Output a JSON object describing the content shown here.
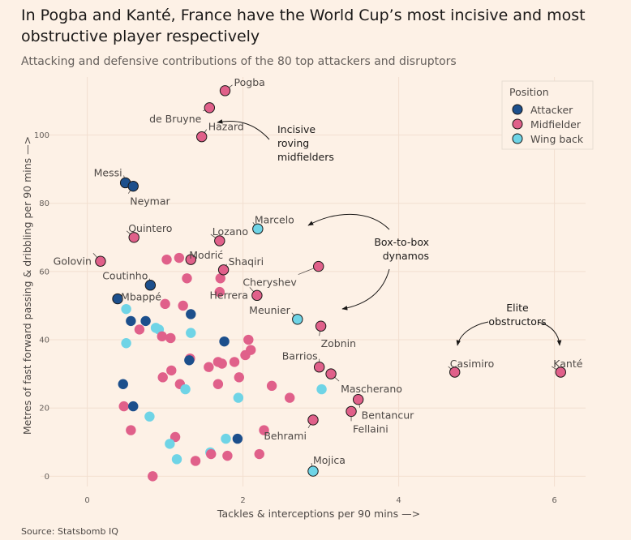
{
  "title": "In Pogba and Kanté, France have the World Cup’s most incisive and most obstructive player respectively",
  "subtitle": "Attacking and defensive contributions of the 80 top attackers and disruptors",
  "source": "Source: Statsbomb IQ",
  "colors": {
    "Attacker": "#1c4f8c",
    "Midfielder": "#e0608a",
    "Wing back": "#6fd4e6",
    "background": "#fdf1e6"
  },
  "chart_data": {
    "type": "scatter",
    "xlabel": "Tackles & interceptions per 90 mins —>",
    "ylabel": "Metres of fast forward passing & dribbling per 90 mins —>",
    "xlim": [
      -0.6,
      6.4
    ],
    "ylim": [
      -3,
      117
    ],
    "xticks": [
      0,
      2,
      4,
      6
    ],
    "yticks": [
      0,
      20,
      40,
      60,
      80,
      100
    ],
    "legend": {
      "title": "Position",
      "placement": "top-right",
      "entries": [
        "Attacker",
        "Midfielder",
        "Wing back"
      ]
    },
    "annotations": [
      {
        "id": "incisive",
        "lines": [
          "Incisive",
          "roving",
          "midfielders"
        ]
      },
      {
        "id": "box",
        "lines": [
          "Box-to-box",
          "dynamos"
        ]
      },
      {
        "id": "elite",
        "lines": [
          "Elite",
          "obstructors"
        ]
      }
    ],
    "points": [
      {
        "x": 1.77,
        "y": 113,
        "pos": "Midfielder",
        "label": "Pogba"
      },
      {
        "x": 1.57,
        "y": 108,
        "pos": "Midfielder",
        "label": "de Bruyne"
      },
      {
        "x": 1.47,
        "y": 99.5,
        "pos": "Midfielder",
        "label": "Hazard"
      },
      {
        "x": 0.49,
        "y": 86,
        "pos": "Attacker",
        "label": "Messi"
      },
      {
        "x": 0.59,
        "y": 85,
        "pos": "Attacker",
        "label": "Neymar"
      },
      {
        "x": 2.19,
        "y": 72.5,
        "pos": "Wing back",
        "label": "Marcelo"
      },
      {
        "x": 0.6,
        "y": 70,
        "pos": "Midfielder",
        "label": "Quintero"
      },
      {
        "x": 1.7,
        "y": 69,
        "pos": "Midfielder",
        "label": "Lozano"
      },
      {
        "x": 0.17,
        "y": 63,
        "pos": "Midfielder",
        "label": "Golovin"
      },
      {
        "x": 1.02,
        "y": 63.5,
        "pos": "Midfielder",
        "label": ""
      },
      {
        "x": 1.18,
        "y": 64,
        "pos": "Midfielder",
        "label": ""
      },
      {
        "x": 1.33,
        "y": 63.5,
        "pos": "Midfielder",
        "label": "Modrić"
      },
      {
        "x": 1.75,
        "y": 60.5,
        "pos": "Midfielder",
        "label": "Shaqiri"
      },
      {
        "x": 0.81,
        "y": 56,
        "pos": "Attacker",
        "label": "Coutinho"
      },
      {
        "x": 2.97,
        "y": 61.5,
        "pos": "Midfielder",
        "label": "Cheryshev"
      },
      {
        "x": 2.18,
        "y": 53,
        "pos": "Midfielder",
        "label": "Herrera"
      },
      {
        "x": 0.39,
        "y": 52,
        "pos": "Attacker",
        "label": "Mbappé"
      },
      {
        "x": 2.7,
        "y": 46,
        "pos": "Wing back",
        "label": "Meunier"
      },
      {
        "x": 3.0,
        "y": 44,
        "pos": "Midfielder",
        "label": "Zobnin"
      },
      {
        "x": 2.98,
        "y": 32,
        "pos": "Midfielder",
        "label": "Barrios"
      },
      {
        "x": 3.13,
        "y": 30,
        "pos": "Midfielder",
        "label": "Mascherano"
      },
      {
        "x": 4.72,
        "y": 30.5,
        "pos": "Midfielder",
        "label": "Casimiro"
      },
      {
        "x": 6.08,
        "y": 30.5,
        "pos": "Midfielder",
        "label": "Kanté"
      },
      {
        "x": 3.48,
        "y": 22.5,
        "pos": "Midfielder",
        "label": "Bentancur"
      },
      {
        "x": 3.39,
        "y": 19,
        "pos": "Midfielder",
        "label": "Fellaini"
      },
      {
        "x": 2.9,
        "y": 16.5,
        "pos": "Midfielder",
        "label": "Behrami"
      },
      {
        "x": 2.9,
        "y": 1.5,
        "pos": "Wing back",
        "label": "Mojica"
      },
      {
        "x": 1.28,
        "y": 58,
        "pos": "Midfielder",
        "label": ""
      },
      {
        "x": 1.71,
        "y": 58,
        "pos": "Midfielder",
        "label": ""
      },
      {
        "x": 1.7,
        "y": 54,
        "pos": "Midfielder",
        "label": ""
      },
      {
        "x": 1.0,
        "y": 50.5,
        "pos": "Midfielder",
        "label": ""
      },
      {
        "x": 1.23,
        "y": 50,
        "pos": "Midfielder",
        "label": ""
      },
      {
        "x": 0.5,
        "y": 49,
        "pos": "Wing back",
        "label": ""
      },
      {
        "x": 1.33,
        "y": 47.5,
        "pos": "Attacker",
        "label": ""
      },
      {
        "x": 0.56,
        "y": 45.5,
        "pos": "Attacker",
        "label": ""
      },
      {
        "x": 0.75,
        "y": 45.5,
        "pos": "Attacker",
        "label": ""
      },
      {
        "x": 0.67,
        "y": 43,
        "pos": "Midfielder",
        "label": ""
      },
      {
        "x": 0.92,
        "y": 43,
        "pos": "Wing back",
        "label": ""
      },
      {
        "x": 0.96,
        "y": 41,
        "pos": "Midfielder",
        "label": ""
      },
      {
        "x": 1.33,
        "y": 42,
        "pos": "Wing back",
        "label": ""
      },
      {
        "x": 1.07,
        "y": 40.5,
        "pos": "Midfielder",
        "label": ""
      },
      {
        "x": 0.5,
        "y": 39,
        "pos": "Wing back",
        "label": ""
      },
      {
        "x": 1.76,
        "y": 39.5,
        "pos": "Attacker",
        "label": ""
      },
      {
        "x": 2.07,
        "y": 40,
        "pos": "Midfielder",
        "label": ""
      },
      {
        "x": 2.1,
        "y": 37,
        "pos": "Midfielder",
        "label": ""
      },
      {
        "x": 2.03,
        "y": 35.5,
        "pos": "Midfielder",
        "label": ""
      },
      {
        "x": 1.32,
        "y": 34.5,
        "pos": "Midfielder",
        "label": ""
      },
      {
        "x": 1.31,
        "y": 34,
        "pos": "Attacker",
        "label": ""
      },
      {
        "x": 1.68,
        "y": 33.5,
        "pos": "Midfielder",
        "label": ""
      },
      {
        "x": 1.73,
        "y": 33,
        "pos": "Midfielder",
        "label": ""
      },
      {
        "x": 1.89,
        "y": 33.5,
        "pos": "Midfielder",
        "label": ""
      },
      {
        "x": 1.56,
        "y": 32,
        "pos": "Midfielder",
        "label": ""
      },
      {
        "x": 1.08,
        "y": 31,
        "pos": "Midfielder",
        "label": ""
      },
      {
        "x": 0.97,
        "y": 29,
        "pos": "Midfielder",
        "label": ""
      },
      {
        "x": 1.95,
        "y": 29,
        "pos": "Midfielder",
        "label": ""
      },
      {
        "x": 1.19,
        "y": 27,
        "pos": "Midfielder",
        "label": ""
      },
      {
        "x": 1.68,
        "y": 27,
        "pos": "Midfielder",
        "label": ""
      },
      {
        "x": 0.46,
        "y": 27,
        "pos": "Attacker",
        "label": ""
      },
      {
        "x": 2.37,
        "y": 26.5,
        "pos": "Midfielder",
        "label": ""
      },
      {
        "x": 1.26,
        "y": 25.5,
        "pos": "Wing back",
        "label": ""
      },
      {
        "x": 3.01,
        "y": 25.5,
        "pos": "Wing back",
        "label": ""
      },
      {
        "x": 1.94,
        "y": 23,
        "pos": "Wing back",
        "label": ""
      },
      {
        "x": 2.6,
        "y": 23,
        "pos": "Midfielder",
        "label": ""
      },
      {
        "x": 0.47,
        "y": 20.5,
        "pos": "Midfielder",
        "label": ""
      },
      {
        "x": 0.59,
        "y": 20.5,
        "pos": "Attacker",
        "label": ""
      },
      {
        "x": 0.8,
        "y": 17.5,
        "pos": "Wing back",
        "label": ""
      },
      {
        "x": 0.56,
        "y": 13.5,
        "pos": "Midfielder",
        "label": ""
      },
      {
        "x": 2.27,
        "y": 13.5,
        "pos": "Midfielder",
        "label": ""
      },
      {
        "x": 1.13,
        "y": 11.5,
        "pos": "Midfielder",
        "label": ""
      },
      {
        "x": 1.78,
        "y": 11,
        "pos": "Wing back",
        "label": ""
      },
      {
        "x": 1.93,
        "y": 11,
        "pos": "Attacker",
        "label": ""
      },
      {
        "x": 1.06,
        "y": 9.5,
        "pos": "Wing back",
        "label": ""
      },
      {
        "x": 1.58,
        "y": 7,
        "pos": "Wing back",
        "label": ""
      },
      {
        "x": 1.59,
        "y": 6.5,
        "pos": "Midfielder",
        "label": ""
      },
      {
        "x": 1.8,
        "y": 6,
        "pos": "Midfielder",
        "label": ""
      },
      {
        "x": 2.21,
        "y": 6.5,
        "pos": "Midfielder",
        "label": ""
      },
      {
        "x": 1.15,
        "y": 5,
        "pos": "Wing back",
        "label": ""
      },
      {
        "x": 1.39,
        "y": 4.5,
        "pos": "Midfielder",
        "label": ""
      },
      {
        "x": 0.84,
        "y": 0,
        "pos": "Midfielder",
        "label": ""
      },
      {
        "x": 0.88,
        "y": 43.5,
        "pos": "Wing back",
        "label": ""
      }
    ]
  }
}
